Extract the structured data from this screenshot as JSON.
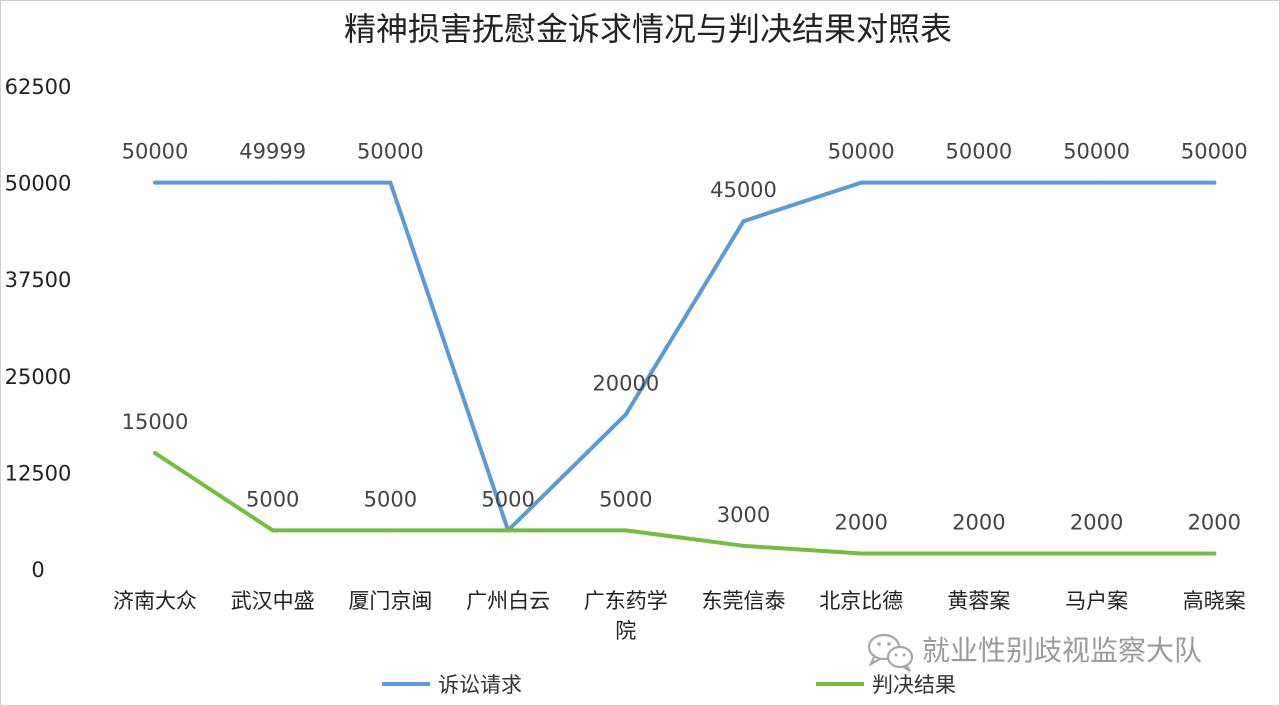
{
  "chart_data": {
    "type": "line",
    "title": "精神损害抚慰金诉求情况与判决结果对照表",
    "categories": [
      "济南大众",
      "武汉中盛",
      "厦门京闽",
      "广州白云",
      "广东药学院",
      "东莞信泰",
      "北京比德",
      "黄蓉案",
      "马户案",
      "高晓案"
    ],
    "category_display": [
      [
        "济南大众"
      ],
      [
        "武汉中盛"
      ],
      [
        "厦门京闽"
      ],
      [
        "广州白云"
      ],
      [
        "广东药学",
        "院"
      ],
      [
        "东莞信泰"
      ],
      [
        "北京比德"
      ],
      [
        "黄蓉案"
      ],
      [
        "马户案"
      ],
      [
        "高晓案"
      ]
    ],
    "yticks": [
      "0",
      "12500",
      "25000",
      "37500",
      "50000",
      "62500"
    ],
    "ylim": [
      0,
      62500
    ],
    "grid": false,
    "legend_position": "bottom",
    "series": [
      {
        "name": "诉讼请求",
        "color": "#5b9bd5",
        "values": [
          50000,
          49999,
          50000,
          5000,
          20000,
          45000,
          50000,
          50000,
          50000,
          50000
        ],
        "labels": [
          "50000",
          "49999",
          "50000",
          "",
          "20000",
          "45000",
          "50000",
          "50000",
          "50000",
          "50000"
        ]
      },
      {
        "name": "判决结果",
        "color": "#70bf41",
        "values": [
          15000,
          5000,
          5000,
          5000,
          5000,
          3000,
          2000,
          2000,
          2000,
          2000
        ],
        "labels": [
          "15000",
          "5000",
          "5000",
          "5000",
          "5000",
          "3000",
          "2000",
          "2000",
          "2000",
          "2000"
        ]
      }
    ]
  },
  "watermark": {
    "text": "就业性别歧视监察大队",
    "icon": "wechat-icon"
  }
}
